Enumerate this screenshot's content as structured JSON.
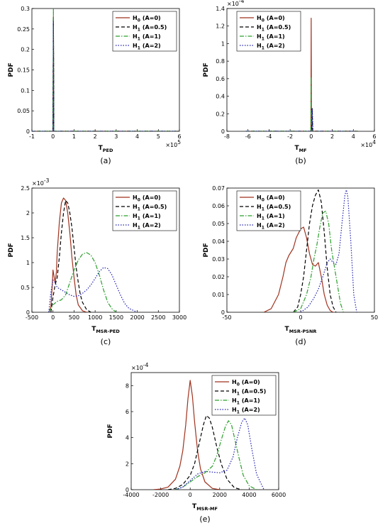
{
  "colors": {
    "H0": "#a0321e",
    "H1_05": "#000000",
    "H1_1": "#2ca02c",
    "H1_2": "#2020b0"
  },
  "chart_data": [
    {
      "type": "line",
      "panel": "a",
      "caption": "(a)",
      "xlabel": "T",
      "xlabel_sub": "PED",
      "ylabel": "PDF",
      "xlim": [
        -100000,
        600000
      ],
      "ylim": [
        0,
        0.3
      ],
      "xticks": [
        -100000,
        0,
        100000,
        200000,
        300000,
        400000,
        500000,
        600000
      ],
      "xtick_labels": [
        "-1",
        "0",
        "1",
        "2",
        "3",
        "4",
        "5",
        "6"
      ],
      "yticks": [
        0,
        0.05,
        0.1,
        0.15,
        0.2,
        0.25,
        0.3
      ],
      "ytick_labels": [
        "0",
        "0.05",
        "0.1",
        "0.15",
        "0.2",
        "0.25",
        "0.3"
      ],
      "x_multiplier": "×10",
      "x_multiplier_exp": "5",
      "y_multiplier": "",
      "y_multiplier_exp": "",
      "legend_pos": "top-right",
      "series": [
        {
          "name": "H",
          "sub": "0",
          "cond": "(A=0)",
          "style": "solid",
          "color": "#a0321e",
          "x": [
            -100000,
            0,
            2000,
            4000,
            600000
          ],
          "y": [
            0,
            0,
            0.28,
            0,
            0
          ]
        },
        {
          "name": "H",
          "sub": "1",
          "cond": "(A=0.5)",
          "style": "dashed",
          "color": "#000000",
          "x": [
            -100000,
            0,
            2000,
            4000,
            600000
          ],
          "y": [
            0,
            0,
            0.28,
            0,
            0
          ]
        },
        {
          "name": "H",
          "sub": "1",
          "cond": "(A=1)",
          "style": "dashdot",
          "color": "#2ca02c",
          "x": [
            -100000,
            0,
            2000,
            4000,
            600000
          ],
          "y": [
            0,
            0,
            0.3,
            0,
            0
          ]
        },
        {
          "name": "H",
          "sub": "1",
          "cond": "(A=2)",
          "style": "dotted",
          "color": "#2020b0",
          "x": [
            -100000,
            0,
            2000,
            4000,
            600000
          ],
          "y": [
            0,
            0,
            0.27,
            0,
            0
          ]
        }
      ]
    },
    {
      "type": "line",
      "panel": "b",
      "caption": "(b)",
      "xlabel": "T",
      "xlabel_sub": "MF",
      "ylabel": "PDF",
      "xlim": [
        -80000,
        60000
      ],
      "ylim": [
        0,
        1.4
      ],
      "xticks": [
        -80000,
        -60000,
        -40000,
        -20000,
        0,
        20000,
        40000,
        60000
      ],
      "xtick_labels": [
        "-8",
        "-6",
        "-4",
        "-2",
        "0",
        "2",
        "4",
        "6"
      ],
      "yticks": [
        0,
        0.2,
        0.4,
        0.6,
        0.8,
        1,
        1.2,
        1.4
      ],
      "ytick_labels": [
        "0",
        "0.2",
        "0.4",
        "0.6",
        "0.8",
        "1",
        "1.2",
        "1.4"
      ],
      "x_multiplier": "×10",
      "x_multiplier_exp": "4",
      "y_multiplier": "×10",
      "y_multiplier_exp": "-4",
      "legend_pos": "top-left",
      "series": [
        {
          "name": "H",
          "sub": "0",
          "cond": "(A=0)",
          "style": "solid",
          "color": "#a0321e",
          "x": [
            -62000,
            -300,
            0,
            300,
            44000
          ],
          "y": [
            0,
            0,
            1.29,
            0,
            0
          ]
        },
        {
          "name": "H",
          "sub": "1",
          "cond": "(A=0.5)",
          "style": "dashed",
          "color": "#000000",
          "x": [
            -62000,
            400,
            900,
            1400,
            44000
          ],
          "y": [
            0,
            0,
            0.26,
            0,
            0
          ]
        },
        {
          "name": "H",
          "sub": "1",
          "cond": "(A=1)",
          "style": "dashdot",
          "color": "#2ca02c",
          "x": [
            -62000,
            -300,
            0,
            300,
            44000
          ],
          "y": [
            0,
            0,
            0.62,
            0,
            0
          ]
        },
        {
          "name": "H",
          "sub": "1",
          "cond": "(A=2)",
          "style": "dotted",
          "color": "#2020b0",
          "x": [
            -62000,
            500,
            1100,
            1700,
            44000
          ],
          "y": [
            0,
            0,
            0.25,
            0,
            0
          ]
        }
      ]
    },
    {
      "type": "line",
      "panel": "c",
      "caption": "(c)",
      "xlabel": "T",
      "xlabel_sub": "MSR-PED",
      "ylabel": "PDF",
      "xlim": [
        -500,
        3000
      ],
      "ylim": [
        0,
        2.5
      ],
      "xticks": [
        -500,
        0,
        500,
        1000,
        1500,
        2000,
        2500,
        3000
      ],
      "xtick_labels": [
        "-500",
        "0",
        "500",
        "1000",
        "1500",
        "2000",
        "2500",
        "3000"
      ],
      "yticks": [
        0,
        0.5,
        1,
        1.5,
        2,
        2.5
      ],
      "ytick_labels": [
        "0",
        "0.5",
        "1",
        "1.5",
        "2",
        "2.5"
      ],
      "x_multiplier": "",
      "x_multiplier_exp": "",
      "y_multiplier": "×10",
      "y_multiplier_exp": "-3",
      "legend_pos": "top-right",
      "series": [
        {
          "name": "H",
          "sub": "0",
          "cond": "(A=0)",
          "style": "solid",
          "color": "#a0321e",
          "x": [
            -100,
            -50,
            -20,
            0,
            20,
            50,
            80,
            100,
            150,
            200,
            250,
            300,
            350,
            400,
            450,
            500,
            550,
            600,
            700,
            800
          ],
          "y": [
            0,
            0.1,
            0.5,
            0.85,
            0.75,
            0.6,
            0.8,
            1.2,
            1.8,
            2.2,
            2.3,
            2.25,
            2.0,
            1.6,
            1.1,
            0.7,
            0.35,
            0.15,
            0.03,
            0
          ]
        },
        {
          "name": "H",
          "sub": "1",
          "cond": "(A=0.5)",
          "style": "dashed",
          "color": "#000000",
          "x": [
            -50,
            0,
            50,
            100,
            150,
            200,
            250,
            300,
            350,
            400,
            450,
            500,
            550,
            600,
            650,
            700,
            800,
            900
          ],
          "y": [
            0,
            0.3,
            0.55,
            0.7,
            1.1,
            1.6,
            2.0,
            2.25,
            2.2,
            2.0,
            1.7,
            1.3,
            0.9,
            0.6,
            0.35,
            0.2,
            0.05,
            0
          ]
        },
        {
          "name": "H",
          "sub": "1",
          "cond": "(A=1)",
          "style": "dashdot",
          "color": "#2ca02c",
          "x": [
            -100,
            0,
            100,
            200,
            300,
            400,
            500,
            600,
            700,
            800,
            900,
            1000,
            1100,
            1200,
            1300,
            1400,
            1500
          ],
          "y": [
            0,
            0.15,
            0.22,
            0.25,
            0.35,
            0.6,
            0.85,
            1.05,
            1.17,
            1.2,
            1.15,
            1.0,
            0.75,
            0.45,
            0.2,
            0.07,
            0
          ]
        },
        {
          "name": "H",
          "sub": "1",
          "cond": "(A=2)",
          "style": "dotted",
          "color": "#2020b0",
          "x": [
            -100,
            -50,
            0,
            50,
            100,
            200,
            300,
            400,
            500,
            600,
            700,
            800,
            900,
            1000,
            1100,
            1200,
            1300,
            1400,
            1500,
            1600,
            1700,
            1800,
            2000
          ],
          "y": [
            0,
            0.4,
            0.65,
            0.6,
            0.5,
            0.45,
            0.4,
            0.35,
            0.32,
            0.33,
            0.38,
            0.45,
            0.55,
            0.68,
            0.82,
            0.9,
            0.88,
            0.75,
            0.55,
            0.35,
            0.18,
            0.08,
            0
          ]
        }
      ]
    },
    {
      "type": "line",
      "panel": "d",
      "caption": "(d)",
      "xlabel": "T",
      "xlabel_sub": "MSR-PSNR",
      "ylabel": "PDF",
      "xlim": [
        -50,
        50
      ],
      "ylim": [
        0,
        0.07
      ],
      "xticks": [
        -50,
        0,
        50
      ],
      "xtick_labels": [
        "-50",
        "0",
        "50"
      ],
      "yticks": [
        0,
        0.01,
        0.02,
        0.03,
        0.04,
        0.05,
        0.06,
        0.07
      ],
      "ytick_labels": [
        "0",
        "0.01",
        "0.02",
        "0.03",
        "0.04",
        "0.05",
        "0.06",
        "0.07"
      ],
      "x_multiplier": "",
      "x_multiplier_exp": "",
      "y_multiplier": "",
      "y_multiplier_exp": "",
      "legend_pos": "top-left",
      "series": [
        {
          "name": "H",
          "sub": "0",
          "cond": "(A=0)",
          "style": "solid",
          "color": "#a0321e",
          "x": [
            -25,
            -20,
            -15,
            -12,
            -10,
            -8,
            -5,
            -3,
            0,
            2,
            4,
            6,
            8,
            10,
            12,
            14,
            16,
            18,
            20,
            22
          ],
          "y": [
            0,
            0.002,
            0.01,
            0.02,
            0.028,
            0.032,
            0.036,
            0.042,
            0.047,
            0.048,
            0.042,
            0.033,
            0.027,
            0.026,
            0.028,
            0.02,
            0.01,
            0.004,
            0.001,
            0
          ]
        },
        {
          "name": "H",
          "sub": "1",
          "cond": "(A=0.5)",
          "style": "dashed",
          "color": "#000000",
          "x": [
            -5,
            -2,
            0,
            2,
            4,
            6,
            8,
            10,
            12,
            14,
            16,
            18,
            20,
            22,
            24
          ],
          "y": [
            0,
            0.003,
            0.01,
            0.02,
            0.035,
            0.05,
            0.06,
            0.066,
            0.069,
            0.062,
            0.045,
            0.025,
            0.01,
            0.003,
            0
          ]
        },
        {
          "name": "H",
          "sub": "1",
          "cond": "(A=1)",
          "style": "dashdot",
          "color": "#2ca02c",
          "x": [
            -5,
            0,
            4,
            7,
            9,
            11,
            13,
            15,
            17,
            19,
            21,
            23,
            25,
            27,
            29
          ],
          "y": [
            0,
            0.002,
            0.01,
            0.02,
            0.03,
            0.038,
            0.048,
            0.056,
            0.057,
            0.05,
            0.035,
            0.025,
            0.015,
            0.005,
            0
          ]
        },
        {
          "name": "H",
          "sub": "1",
          "cond": "(A=2)",
          "style": "dotted",
          "color": "#2020b0",
          "x": [
            0,
            5,
            9,
            12,
            15,
            18,
            20,
            22,
            24,
            26,
            28,
            30,
            31,
            32,
            34,
            36,
            38
          ],
          "y": [
            0,
            0.003,
            0.008,
            0.013,
            0.02,
            0.028,
            0.03,
            0.028,
            0.027,
            0.033,
            0.05,
            0.066,
            0.069,
            0.065,
            0.04,
            0.01,
            0
          ]
        }
      ]
    },
    {
      "type": "line",
      "panel": "e",
      "caption": "(e)",
      "xlabel": "T",
      "xlabel_sub": "MSR-MF",
      "ylabel": "PDF",
      "xlim": [
        -4000,
        6000
      ],
      "ylim": [
        0,
        9
      ],
      "xticks": [
        -4000,
        -2000,
        0,
        2000,
        4000,
        6000
      ],
      "xtick_labels": [
        "-4000",
        "-2000",
        "0",
        "2000",
        "4000",
        "6000"
      ],
      "yticks": [
        0,
        2,
        4,
        6,
        8
      ],
      "ytick_labels": [
        "0",
        "2",
        "4",
        "6",
        "8"
      ],
      "x_multiplier": "",
      "x_multiplier_exp": "",
      "y_multiplier": "×10",
      "y_multiplier_exp": "-4",
      "legend_pos": "top-right",
      "series": [
        {
          "name": "H",
          "sub": "0",
          "cond": "(A=0)",
          "style": "solid",
          "color": "#a0321e",
          "x": [
            -2500,
            -2000,
            -1500,
            -1000,
            -700,
            -500,
            -300,
            -150,
            0,
            150,
            300,
            500,
            700,
            1000,
            1500,
            2000
          ],
          "y": [
            0,
            0.05,
            0.2,
            0.8,
            1.8,
            3.0,
            5.0,
            7.0,
            8.4,
            7.2,
            5.2,
            3.0,
            1.6,
            0.6,
            0.1,
            0
          ]
        },
        {
          "name": "H",
          "sub": "1",
          "cond": "(A=0.5)",
          "style": "dashed",
          "color": "#000000",
          "x": [
            -1500,
            -1000,
            -500,
            0,
            300,
            600,
            900,
            1100,
            1300,
            1500,
            1800,
            2100,
            2500,
            3000,
            3500
          ],
          "y": [
            0,
            0.1,
            0.4,
            1.1,
            2.0,
            3.5,
            5.0,
            5.7,
            5.5,
            4.8,
            3.3,
            2.0,
            0.8,
            0.15,
            0
          ]
        },
        {
          "name": "H",
          "sub": "1",
          "cond": "(A=1)",
          "style": "dashdot",
          "color": "#2ca02c",
          "x": [
            -1000,
            -500,
            0,
            500,
            1000,
            1500,
            1800,
            2100,
            2400,
            2600,
            2800,
            3000,
            3300,
            3600,
            4000,
            4500
          ],
          "y": [
            0,
            0.2,
            0.6,
            1.0,
            1.3,
            1.8,
            2.6,
            3.8,
            4.9,
            5.3,
            5.0,
            4.0,
            2.5,
            1.1,
            0.3,
            0
          ]
        },
        {
          "name": "H",
          "sub": "1",
          "cond": "(A=2)",
          "style": "dotted",
          "color": "#2020b0",
          "x": [
            -1000,
            -500,
            0,
            500,
            1000,
            1500,
            2000,
            2500,
            2900,
            3200,
            3500,
            3700,
            3900,
            4200,
            4500,
            5000
          ],
          "y": [
            0,
            0.2,
            0.7,
            1.2,
            1.4,
            1.35,
            1.3,
            1.5,
            2.5,
            4.0,
            5.2,
            5.5,
            5.0,
            3.0,
            1.2,
            0
          ]
        }
      ]
    }
  ]
}
